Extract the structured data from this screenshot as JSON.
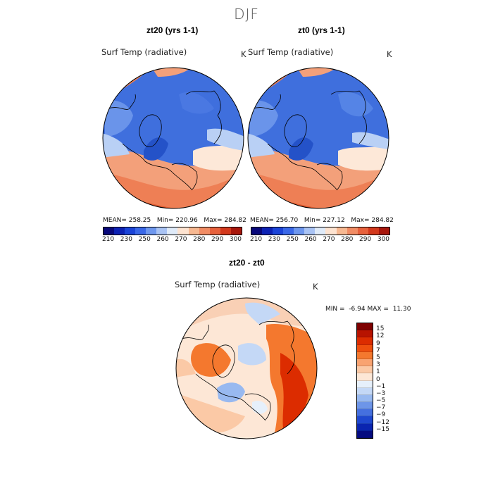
{
  "season_title": "DJF",
  "panels": [
    {
      "title": "zt20 (yrs 1-1)",
      "variable": "Surf Temp (radiative)",
      "unit": "K",
      "mean_label": "MEAN=",
      "mean": "258.25",
      "min_label": "Min=",
      "min": "220.96",
      "max_label": "Max=",
      "max": "284.82"
    },
    {
      "title": "zt0 (yrs 1-1)",
      "variable": "Surf Temp (radiative)",
      "unit": "K",
      "mean_label": "MEAN=",
      "mean": "256.70",
      "min_label": "Min=",
      "min": "227.12",
      "max_label": "Max=",
      "max": "284.82"
    }
  ],
  "abs_colorbar": {
    "ticks": [
      "210",
      "230",
      "250",
      "260",
      "270",
      "280",
      "290",
      "300"
    ],
    "colors": [
      "#08087a",
      "#0c22b4",
      "#1b44d8",
      "#3a68e8",
      "#6e97ee",
      "#a9c3f4",
      "#dfeaf8",
      "#fde3d0",
      "#f7b891",
      "#f18c64",
      "#e7613c",
      "#d3391d",
      "#a8170c"
    ]
  },
  "diff_panel": {
    "title": "zt20 - zt0",
    "variable": "Surf Temp (radiative)",
    "unit": "K",
    "min_label": "MIN =",
    "min": "-6.94",
    "max_label": "MAX =",
    "max": "11.30"
  },
  "diff_colorbar": {
    "ticks": [
      "15",
      "12",
      "9",
      "7",
      "5",
      "3",
      "1",
      "0",
      "−1",
      "−3",
      "−5",
      "−7",
      "−9",
      "−12",
      "−15"
    ],
    "colors": [
      "#7e0000",
      "#b81300",
      "#dc2c00",
      "#ee4f0e",
      "#f4782e",
      "#f9a371",
      "#fbc9a6",
      "#fde7d6",
      "#e6f0fb",
      "#c4d8f6",
      "#98b9f0",
      "#6d95e8",
      "#4570df",
      "#1f48cf",
      "#0a25b0",
      "#050b80"
    ]
  },
  "colors": {
    "ocean_blue": "#3f6fdd",
    "mid_blue": "#6a94ea",
    "light_blue": "#b9d0f5",
    "pale": "#fde8d8",
    "salmon": "#f3a07a",
    "orange": "#ee7f55",
    "red": "#e05a2f",
    "dark_red": "#c63a16"
  }
}
